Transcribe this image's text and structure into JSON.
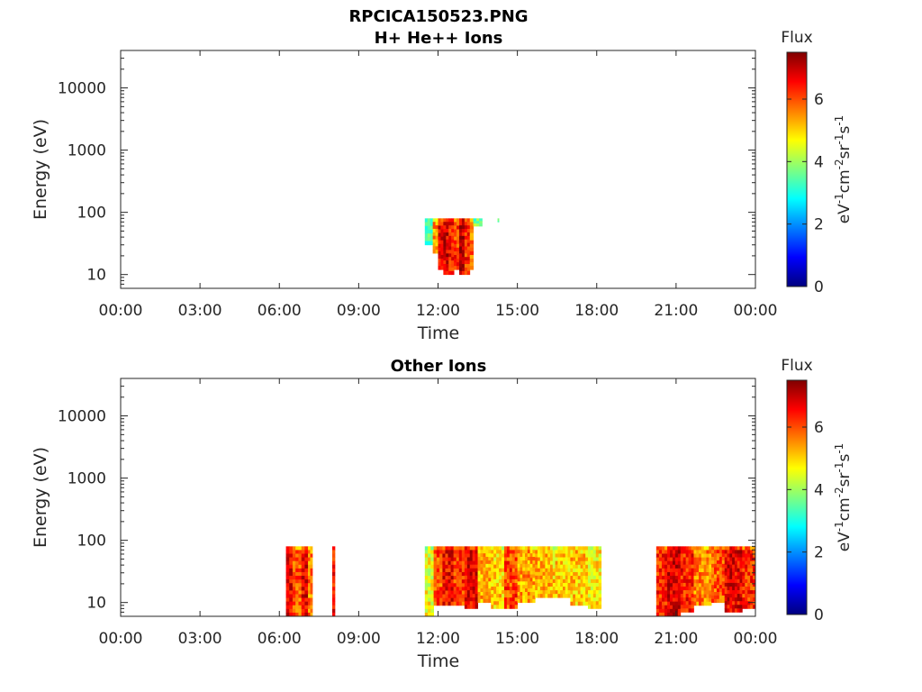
{
  "figure": {
    "title": "RPCICA150523.PNG"
  },
  "colorbar": {
    "label": "Flux",
    "unit_prefix": "eV",
    "unit_parts": [
      {
        "t": "eV",
        "sup": false
      },
      {
        "t": "-1",
        "sup": true
      },
      {
        "t": "cm",
        "sup": false
      },
      {
        "t": "-2",
        "sup": true
      },
      {
        "t": "sr",
        "sup": false
      },
      {
        "t": "-1",
        "sup": true
      },
      {
        "t": "s",
        "sup": false
      },
      {
        "t": "-1",
        "sup": true
      }
    ],
    "range": [
      0,
      7.5
    ],
    "ticks": [
      "0",
      "2",
      "4",
      "6"
    ],
    "tick_values": [
      0,
      2,
      4,
      6
    ],
    "colormap": "jet",
    "colors": [
      "#00007f",
      "#0000ff",
      "#007fff",
      "#00ffff",
      "#7fff7f",
      "#ffff00",
      "#ff7f00",
      "#ff0000",
      "#7f0000"
    ]
  },
  "chart_data": [
    {
      "type": "heatmap",
      "title": "H+ He++ Ions",
      "xlabel": "Time",
      "ylabel": "Energy (eV)",
      "x_ticks": [
        "00:00",
        "03:00",
        "06:00",
        "09:00",
        "12:00",
        "15:00",
        "18:00",
        "21:00",
        "00:00"
      ],
      "x_tick_hours": [
        0,
        3,
        6,
        9,
        12,
        15,
        18,
        21,
        24
      ],
      "xlim_hours": [
        0,
        24
      ],
      "y_scale": "log",
      "y_ticks": [
        "10",
        "100",
        "1000",
        "10000"
      ],
      "y_tick_values": [
        10,
        100,
        1000,
        10000
      ],
      "ylim": [
        6,
        40000
      ],
      "grid": false,
      "data_region": {
        "energy_min_eV": 6,
        "energy_max_eV": 80
      },
      "flux_blocks": [
        {
          "t_start": "11:30",
          "t_end": "11:48",
          "e_low": 30,
          "e_high": 80,
          "flux": 3.5
        },
        {
          "t_start": "11:48",
          "t_end": "12:00",
          "e_low": 22,
          "e_high": 80,
          "flux": 5.4
        },
        {
          "t_start": "12:00",
          "t_end": "12:12",
          "e_low": 12,
          "e_high": 80,
          "flux": 6.6
        },
        {
          "t_start": "12:12",
          "t_end": "12:24",
          "e_low": 10,
          "e_high": 80,
          "flux": 6.8
        },
        {
          "t_start": "12:24",
          "t_end": "12:36",
          "e_low": 10,
          "e_high": 80,
          "flux": 6.5
        },
        {
          "t_start": "12:36",
          "t_end": "12:48",
          "e_low": 12,
          "e_high": 80,
          "flux": 6.2
        },
        {
          "t_start": "12:48",
          "t_end": "13:00",
          "e_low": 10,
          "e_high": 80,
          "flux": 6.9
        },
        {
          "t_start": "13:00",
          "t_end": "13:12",
          "e_low": 10,
          "e_high": 80,
          "flux": 6.3
        },
        {
          "t_start": "13:12",
          "t_end": "13:20",
          "e_low": 12,
          "e_high": 80,
          "flux": 5.8
        },
        {
          "t_start": "13:20",
          "t_end": "13:40",
          "e_low": 60,
          "e_high": 80,
          "flux": 4.0
        },
        {
          "t_start": "14:15",
          "t_end": "14:18",
          "e_low": 70,
          "e_high": 80,
          "flux": 3.8
        }
      ]
    },
    {
      "type": "heatmap",
      "title": "Other Ions",
      "xlabel": "Time",
      "ylabel": "Energy (eV)",
      "x_ticks": [
        "00:00",
        "03:00",
        "06:00",
        "09:00",
        "12:00",
        "15:00",
        "18:00",
        "21:00",
        "00:00"
      ],
      "x_tick_hours": [
        0,
        3,
        6,
        9,
        12,
        15,
        18,
        21,
        24
      ],
      "xlim_hours": [
        0,
        24
      ],
      "y_scale": "log",
      "y_ticks": [
        "10",
        "100",
        "1000",
        "10000"
      ],
      "y_tick_values": [
        10,
        100,
        1000,
        10000
      ],
      "ylim": [
        6,
        40000
      ],
      "grid": false,
      "data_region": {
        "energy_min_eV": 6,
        "energy_max_eV": 80
      },
      "flux_blocks": [
        {
          "t_start": "06:15",
          "t_end": "06:30",
          "e_low": 6,
          "e_high": 80,
          "flux": 6.6
        },
        {
          "t_start": "06:30",
          "t_end": "06:50",
          "e_low": 6,
          "e_high": 80,
          "flux": 5.9
        },
        {
          "t_start": "06:50",
          "t_end": "07:05",
          "e_low": 6,
          "e_high": 80,
          "flux": 6.7
        },
        {
          "t_start": "07:05",
          "t_end": "07:15",
          "e_low": 6,
          "e_high": 80,
          "flux": 5.6
        },
        {
          "t_start": "08:00",
          "t_end": "08:06",
          "e_low": 6,
          "e_high": 80,
          "flux": 6.5
        },
        {
          "t_start": "11:30",
          "t_end": "11:50",
          "e_low": 6,
          "e_high": 80,
          "flux": 4.6
        },
        {
          "t_start": "11:50",
          "t_end": "12:10",
          "e_low": 9,
          "e_high": 80,
          "flux": 6.0
        },
        {
          "t_start": "12:10",
          "t_end": "12:35",
          "e_low": 9,
          "e_high": 80,
          "flux": 6.6
        },
        {
          "t_start": "12:35",
          "t_end": "13:00",
          "e_low": 9,
          "e_high": 80,
          "flux": 6.2
        },
        {
          "t_start": "13:00",
          "t_end": "13:30",
          "e_low": 8,
          "e_high": 80,
          "flux": 6.7
        },
        {
          "t_start": "13:30",
          "t_end": "14:00",
          "e_low": 10,
          "e_high": 80,
          "flux": 5.3
        },
        {
          "t_start": "14:00",
          "t_end": "14:30",
          "e_low": 8,
          "e_high": 80,
          "flux": 5.0
        },
        {
          "t_start": "14:30",
          "t_end": "15:00",
          "e_low": 8,
          "e_high": 80,
          "flux": 6.1
        },
        {
          "t_start": "15:00",
          "t_end": "15:40",
          "e_low": 10,
          "e_high": 80,
          "flux": 5.4
        },
        {
          "t_start": "15:40",
          "t_end": "16:20",
          "e_low": 12,
          "e_high": 80,
          "flux": 5.2
        },
        {
          "t_start": "16:20",
          "t_end": "17:00",
          "e_low": 12,
          "e_high": 80,
          "flux": 5.0
        },
        {
          "t_start": "17:00",
          "t_end": "17:40",
          "e_low": 9,
          "e_high": 80,
          "flux": 5.1
        },
        {
          "t_start": "17:40",
          "t_end": "18:10",
          "e_low": 8,
          "e_high": 80,
          "flux": 4.8
        },
        {
          "t_start": "20:15",
          "t_end": "20:40",
          "e_low": 6,
          "e_high": 80,
          "flux": 6.3
        },
        {
          "t_start": "20:40",
          "t_end": "21:10",
          "e_low": 6,
          "e_high": 80,
          "flux": 6.8
        },
        {
          "t_start": "21:10",
          "t_end": "21:40",
          "e_low": 7,
          "e_high": 80,
          "flux": 6.4
        },
        {
          "t_start": "21:40",
          "t_end": "22:20",
          "e_low": 9,
          "e_high": 80,
          "flux": 5.6
        },
        {
          "t_start": "22:20",
          "t_end": "22:50",
          "e_low": 10,
          "e_high": 80,
          "flux": 5.9
        },
        {
          "t_start": "22:50",
          "t_end": "23:30",
          "e_low": 7,
          "e_high": 80,
          "flux": 6.7
        },
        {
          "t_start": "23:30",
          "t_end": "24:00",
          "e_low": 8,
          "e_high": 80,
          "flux": 6.2
        }
      ]
    }
  ]
}
